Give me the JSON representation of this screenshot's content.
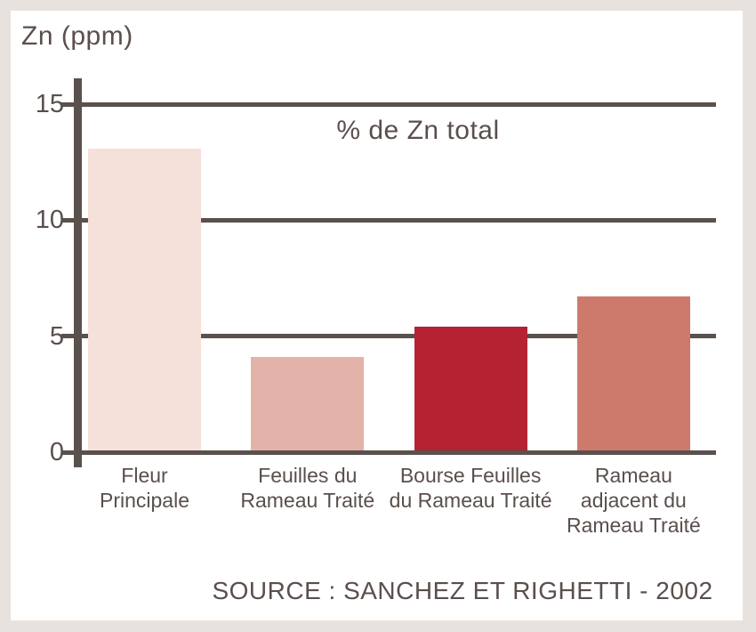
{
  "chart_data": {
    "type": "bar",
    "title": "% de Zn total",
    "unit_label": "Zn (ppm)",
    "categories": [
      "Fleur\nPrincipale",
      "Feuilles du\nRameau Traité",
      "Bourse Feuilles\ndu Rameau Traité",
      "Rameau\nadjacent du\nRameau Traité"
    ],
    "values": [
      13.1,
      4.1,
      5.4,
      6.7
    ],
    "bar_colors": [
      "#f5e1da",
      "#e3b2a9",
      "#b52231",
      "#cd7a6d"
    ],
    "yticks": [
      0,
      5,
      10,
      15
    ],
    "ylim": [
      0,
      15
    ],
    "xlabel": "",
    "ylabel": "Zn (ppm)",
    "grid": "horizontal-gridlines",
    "legend_position": "none",
    "source": "SOURCE : SANCHEZ ET RIGHETTI - 2002",
    "colors": {
      "line": "#5a504c",
      "text": "#5a4f4c",
      "frame": "#e8e2de",
      "panel": "#ffffff"
    }
  }
}
